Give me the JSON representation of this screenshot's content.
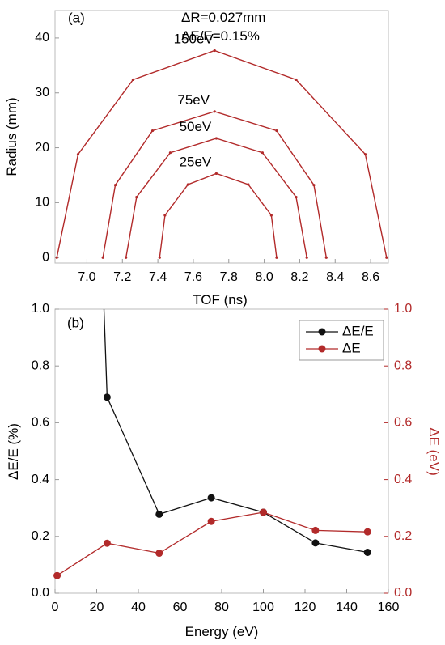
{
  "chart_data": [
    {
      "panel": "(a)",
      "type": "line",
      "xlabel": "TOF (ns)",
      "ylabel": "Radius (mm)",
      "xlim": [
        6.82,
        8.7
      ],
      "ylim": [
        -1,
        45
      ],
      "xticks": [
        "7.0",
        "7.2",
        "7.4",
        "7.6",
        "7.8",
        "8.0",
        "8.2",
        "8.4",
        "8.6"
      ],
      "yticks": [
        "0",
        "10",
        "20",
        "30",
        "40"
      ],
      "annotations": [
        "ΔR=0.027mm",
        "ΔE/E=0.15%"
      ],
      "line_color": "#b22a2a",
      "series": [
        {
          "label": "150eV",
          "points": [
            [
              6.83,
              0
            ],
            [
              6.95,
              18.8
            ],
            [
              7.26,
              32.4
            ],
            [
              7.72,
              37.7
            ],
            [
              8.18,
              32.4
            ],
            [
              8.57,
              18.8
            ],
            [
              8.69,
              0
            ]
          ]
        },
        {
          "label": "75eV",
          "points": [
            [
              7.09,
              0
            ],
            [
              7.16,
              13.2
            ],
            [
              7.37,
              23.1
            ],
            [
              7.72,
              26.6
            ],
            [
              8.07,
              23.1
            ],
            [
              8.28,
              13.2
            ],
            [
              8.35,
              0
            ]
          ]
        },
        {
          "label": "50eV",
          "points": [
            [
              7.22,
              0
            ],
            [
              7.28,
              11.0
            ],
            [
              7.47,
              19.1
            ],
            [
              7.73,
              21.7
            ],
            [
              7.99,
              19.1
            ],
            [
              8.18,
              11.0
            ],
            [
              8.24,
              0
            ]
          ]
        },
        {
          "label": "25eV",
          "points": [
            [
              7.41,
              0
            ],
            [
              7.44,
              7.7
            ],
            [
              7.57,
              13.3
            ],
            [
              7.73,
              15.3
            ],
            [
              7.91,
              13.3
            ],
            [
              8.04,
              7.7
            ],
            [
              8.07,
              0
            ]
          ]
        }
      ]
    },
    {
      "panel": "(b)",
      "type": "line",
      "xlabel": "Energy (eV)",
      "ylabel": "ΔE/E (%)",
      "y2label": "ΔE (eV)",
      "xlim": [
        0,
        160
      ],
      "ylim": [
        0,
        1.0
      ],
      "y2lim": [
        0,
        1.0
      ],
      "xticks": [
        "0",
        "20",
        "40",
        "60",
        "80",
        "100",
        "120",
        "140",
        "160"
      ],
      "yticks": [
        "0.0",
        "0.2",
        "0.4",
        "0.6",
        "0.8",
        "1.0"
      ],
      "y2ticks": [
        "0.0",
        "0.2",
        "0.4",
        "0.6",
        "0.8",
        "1.0"
      ],
      "legend_position": "top-right",
      "series": [
        {
          "name": "ΔE/E",
          "color": "#111111",
          "axis": "left",
          "x": [
            23.5,
            25,
            50,
            75,
            100,
            125,
            150
          ],
          "y": [
            1.0,
            0.69,
            0.278,
            0.336,
            0.285,
            0.177,
            0.144
          ]
        },
        {
          "name": "ΔE",
          "color": "#b22a2a",
          "axis": "right",
          "x": [
            1,
            25,
            50,
            75,
            100,
            125,
            150
          ],
          "y": [
            0.062,
            0.176,
            0.141,
            0.253,
            0.285,
            0.221,
            0.216
          ]
        }
      ]
    }
  ]
}
